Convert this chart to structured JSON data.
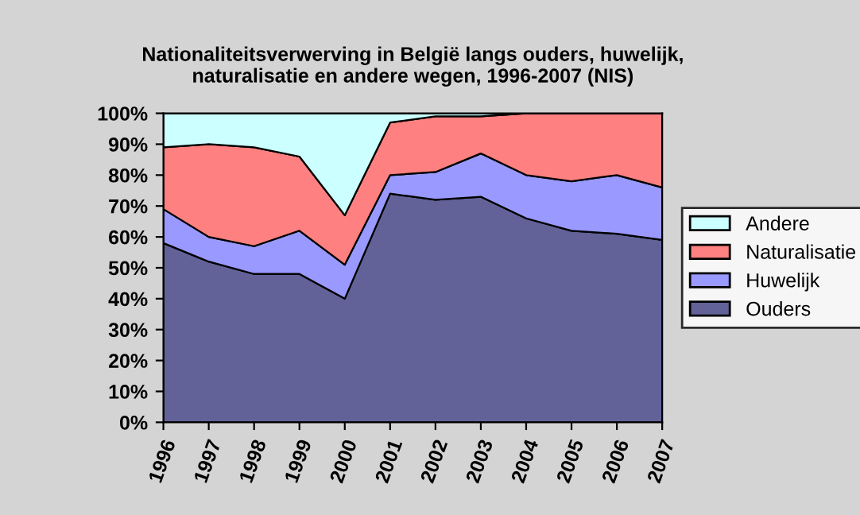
{
  "chart_data": {
    "type": "area",
    "stacked": true,
    "title": "Nationaliteitsverwerving in België langs ouders, huwelijk,\nnaturalisatie en andere wegen, 1996-2007 (NIS)",
    "categories": [
      "1996",
      "1997",
      "1998",
      "1999",
      "2000",
      "2001",
      "2002",
      "2003",
      "2004",
      "2005",
      "2006",
      "2007"
    ],
    "series": [
      {
        "name": "Ouders",
        "color": "#626298",
        "values": [
          58,
          52,
          48,
          48,
          40,
          74,
          72,
          73,
          66,
          62,
          61,
          59
        ]
      },
      {
        "name": "Huwelijk",
        "color": "#9999ff",
        "values": [
          11,
          8,
          9,
          14,
          11,
          6,
          9,
          14,
          14,
          16,
          19,
          17
        ]
      },
      {
        "name": "Naturalisatie",
        "color": "#ff8080",
        "values": [
          20,
          30,
          32,
          24,
          16,
          17,
          18,
          12,
          20,
          22,
          20,
          24
        ]
      },
      {
        "name": "Andere",
        "color": "#ccffff",
        "values": [
          11,
          10,
          11,
          14,
          33,
          3,
          1,
          1,
          0,
          0,
          0,
          0
        ]
      }
    ],
    "ylim": [
      0,
      100
    ],
    "yticks": [
      {
        "value": 0,
        "label": "0%"
      },
      {
        "value": 10,
        "label": "10%"
      },
      {
        "value": 20,
        "label": "20%"
      },
      {
        "value": 30,
        "label": "30%"
      },
      {
        "value": 40,
        "label": "40%"
      },
      {
        "value": 50,
        "label": "50%"
      },
      {
        "value": 60,
        "label": "60%"
      },
      {
        "value": 70,
        "label": "70%"
      },
      {
        "value": 80,
        "label": "80%"
      },
      {
        "value": 90,
        "label": "90%"
      },
      {
        "value": 100,
        "label": "100%"
      }
    ],
    "legend": "right",
    "grid": false
  }
}
